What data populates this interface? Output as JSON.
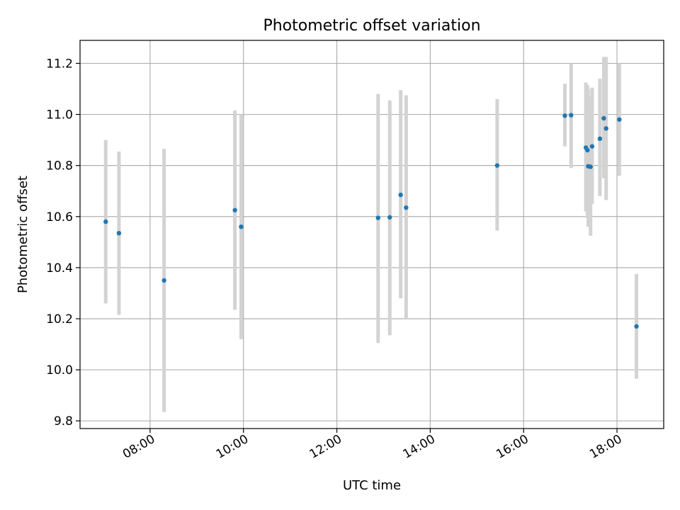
{
  "chart_data": {
    "type": "scatter",
    "title": "Photometric offset variation",
    "xlabel": "UTC time",
    "ylabel": "Photometric offset",
    "grid": true,
    "xlim": [
      "06:30",
      "19:00"
    ],
    "ylim": [
      9.77,
      11.29
    ],
    "xticks": [
      "08:00",
      "10:00",
      "12:00",
      "14:00",
      "16:00",
      "18:00"
    ],
    "yticks": [
      "9.8",
      "10.0",
      "10.2",
      "10.4",
      "10.6",
      "10.8",
      "11.0",
      "11.2"
    ],
    "colors": {
      "point": "#1f77b4",
      "errorbar": "#d3d3d3",
      "grid": "#b0b0b0"
    },
    "points": [
      {
        "x": "07:03",
        "y": 10.58,
        "low": 10.26,
        "high": 10.9
      },
      {
        "x": "07:20",
        "y": 10.535,
        "low": 10.215,
        "high": 10.855
      },
      {
        "x": "08:18",
        "y": 10.35,
        "low": 9.835,
        "high": 10.865
      },
      {
        "x": "09:49",
        "y": 10.625,
        "low": 10.235,
        "high": 11.015
      },
      {
        "x": "09:57",
        "y": 10.56,
        "low": 10.12,
        "high": 11.0
      },
      {
        "x": "12:53",
        "y": 10.595,
        "low": 10.105,
        "high": 11.08
      },
      {
        "x": "13:08",
        "y": 10.597,
        "low": 10.135,
        "high": 11.055
      },
      {
        "x": "13:22",
        "y": 10.685,
        "low": 10.28,
        "high": 11.095
      },
      {
        "x": "13:29",
        "y": 10.635,
        "low": 10.2,
        "high": 11.075
      },
      {
        "x": "15:26",
        "y": 10.8,
        "low": 10.545,
        "high": 11.06
      },
      {
        "x": "16:53",
        "y": 10.995,
        "low": 10.875,
        "high": 11.12
      },
      {
        "x": "17:01",
        "y": 10.997,
        "low": 10.79,
        "high": 11.2
      },
      {
        "x": "17:20",
        "y": 10.87,
        "low": 10.62,
        "high": 11.125
      },
      {
        "x": "17:22",
        "y": 10.86,
        "low": 10.595,
        "high": 11.115
      },
      {
        "x": "17:23",
        "y": 10.797,
        "low": 10.56,
        "high": 11.1
      },
      {
        "x": "17:26",
        "y": 10.795,
        "low": 10.525,
        "high": 11.07
      },
      {
        "x": "17:28",
        "y": 10.875,
        "low": 10.65,
        "high": 11.105
      },
      {
        "x": "17:38",
        "y": 10.905,
        "low": 10.68,
        "high": 11.14
      },
      {
        "x": "17:43",
        "y": 10.985,
        "low": 10.75,
        "high": 11.225
      },
      {
        "x": "17:46",
        "y": 10.945,
        "low": 10.665,
        "high": 11.225
      },
      {
        "x": "18:03",
        "y": 10.98,
        "low": 10.76,
        "high": 11.2
      },
      {
        "x": "18:25",
        "y": 10.17,
        "low": 9.965,
        "high": 10.375
      }
    ]
  }
}
